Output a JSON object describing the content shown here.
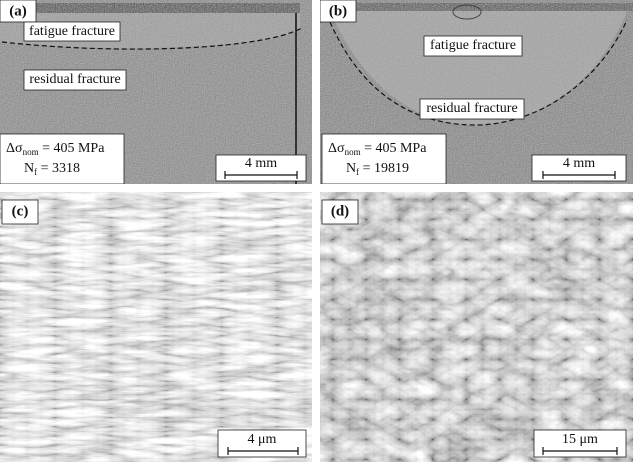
{
  "panels": [
    {
      "label": "(a)",
      "regions": [
        "fatigue fracture",
        "residual fracture"
      ],
      "stress": {
        "symbol": "Δσ",
        "subscript": "nom",
        "text": " = 405 MPa"
      },
      "cycles": {
        "symbol": "N",
        "subscript": "f",
        "text": " = 3318"
      },
      "scale_bar": "4 mm"
    },
    {
      "label": "(b)",
      "regions": [
        "fatigue fracture",
        "residual fracture"
      ],
      "stress": {
        "symbol": "Δσ",
        "subscript": "nom",
        "text": " = 405 MPa"
      },
      "cycles": {
        "symbol": "N",
        "subscript": "f",
        "text": " = 19819"
      },
      "scale_bar": "4 mm"
    },
    {
      "label": "(c)",
      "scale_bar": "4 μm"
    },
    {
      "label": "(d)",
      "scale_bar": "15 μm"
    }
  ]
}
